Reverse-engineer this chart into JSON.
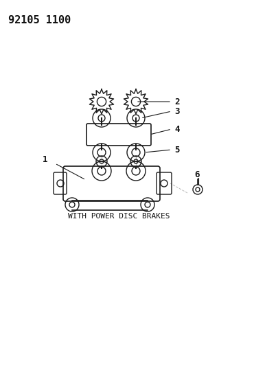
{
  "title_code": "92105 1100",
  "caption": "WITH POWER DISC BRAKES",
  "bg_color": "#ffffff",
  "line_color": "#1a1a1a",
  "label_color": "#111111",
  "part_labels": [
    "1",
    "2",
    "3",
    "4",
    "5",
    "6"
  ],
  "fig_width": 3.7,
  "fig_height": 5.33,
  "dpi": 100
}
